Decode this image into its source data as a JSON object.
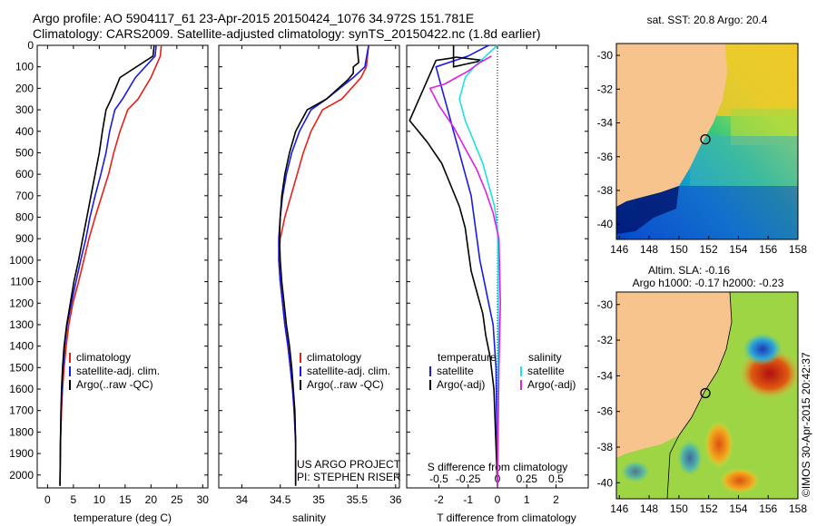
{
  "header": {
    "line1": "Argo profile: AO 5904117_61 23-Apr-2015 20150424_1076 34.972S 151.781E",
    "line2": "Climatology: CARS2009. Satellite-adjusted climatology: synTS_20150422.nc (1.8d earlier)"
  },
  "credits": {
    "project": "US ARGO PROJECT",
    "pi": "PI: STEPHEN RISER",
    "stamp": "©IMOS 30-Apr-2015 20:42:37"
  },
  "colors": {
    "climatology": "#e8201a",
    "satellite": "#1a1ae8",
    "argo": "#000000",
    "cyan": "#20e0e0",
    "magenta": "#e020e0",
    "land": "#f7c48e"
  },
  "chart_data": [
    {
      "type": "line",
      "id": "temperature",
      "xlabel": "temperature (deg C)",
      "ylabel": "",
      "xlim": [
        -2,
        31
      ],
      "ylim": [
        2060,
        0
      ],
      "xticks": [
        0,
        5,
        10,
        15,
        20,
        25,
        30
      ],
      "yticks": [
        0,
        100,
        200,
        300,
        400,
        500,
        600,
        700,
        800,
        900,
        1000,
        1100,
        1200,
        1300,
        1400,
        1500,
        1600,
        1700,
        1800,
        1900,
        2000
      ],
      "legend": [
        "climatology",
        "satellite-adj. clim.",
        "Argo(..raw -QC)"
      ],
      "series": [
        {
          "name": "climatology",
          "color": "#e8201a",
          "x": [
            22.0,
            21.8,
            20.0,
            17.5,
            15.5,
            14.0,
            12.8,
            11.8,
            10.5,
            9.2,
            8.0,
            7.0,
            6.0,
            4.9,
            4.1,
            3.6,
            3.2,
            2.9,
            2.7,
            2.5,
            2.4
          ],
          "y": [
            0,
            50,
            150,
            250,
            300,
            400,
            500,
            600,
            700,
            800,
            900,
            1000,
            1100,
            1200,
            1300,
            1400,
            1500,
            1600,
            1700,
            1850,
            2050
          ]
        },
        {
          "name": "satellite-adj. clim.",
          "color": "#1a1ae8",
          "x": [
            21.0,
            20.8,
            17.0,
            14.5,
            13.0,
            12.0,
            11.3,
            10.3,
            9.2,
            8.2,
            7.4,
            6.4,
            5.5,
            4.6,
            3.8,
            3.3,
            3.0,
            2.8,
            2.6,
            2.5,
            2.4
          ],
          "y": [
            0,
            50,
            150,
            250,
            300,
            400,
            500,
            600,
            700,
            800,
            900,
            1000,
            1100,
            1200,
            1300,
            1400,
            1500,
            1600,
            1700,
            1850,
            2050
          ]
        },
        {
          "name": "Argo(..raw -QC)",
          "color": "#000000",
          "x": [
            20.6,
            20.4,
            14.0,
            12.3,
            11.3,
            10.6,
            10.0,
            9.2,
            8.4,
            7.6,
            6.8,
            6.0,
            5.1,
            4.4,
            3.7,
            3.2,
            2.9,
            2.7,
            2.6,
            2.5,
            2.4
          ],
          "y": [
            0,
            50,
            150,
            250,
            300,
            400,
            500,
            600,
            700,
            800,
            900,
            1000,
            1100,
            1200,
            1300,
            1400,
            1500,
            1600,
            1700,
            1850,
            2050
          ]
        }
      ]
    },
    {
      "type": "line",
      "id": "salinity",
      "xlabel": "salinity",
      "ylabel": "",
      "xlim": [
        33.7,
        36.05
      ],
      "ylim": [
        2060,
        0
      ],
      "xticks": [
        34,
        34.5,
        35,
        35.5,
        36
      ],
      "legend": [
        "climatology",
        "satellite-adj. clim.",
        "Argo(..raw -QC)"
      ],
      "series": [
        {
          "name": "climatology",
          "color": "#e8201a",
          "x": [
            35.65,
            35.62,
            35.55,
            35.3,
            35.05,
            34.9,
            34.8,
            34.72,
            34.64,
            34.56,
            34.5,
            34.48,
            34.5,
            34.53,
            34.56,
            34.6,
            34.63,
            34.66,
            34.68,
            34.7,
            34.7
          ],
          "y": [
            0,
            100,
            150,
            250,
            300,
            400,
            500,
            600,
            700,
            800,
            900,
            1000,
            1100,
            1200,
            1300,
            1400,
            1500,
            1600,
            1700,
            1850,
            2050
          ]
        },
        {
          "name": "satellite-adj. clim.",
          "color": "#1a1ae8",
          "x": [
            35.65,
            35.6,
            35.45,
            35.1,
            34.9,
            34.75,
            34.65,
            34.58,
            34.53,
            34.5,
            34.48,
            34.48,
            34.5,
            34.53,
            34.56,
            34.6,
            34.63,
            34.66,
            34.68,
            34.7,
            34.7
          ],
          "y": [
            0,
            100,
            150,
            250,
            300,
            400,
            500,
            600,
            700,
            800,
            900,
            1000,
            1100,
            1200,
            1300,
            1400,
            1500,
            1600,
            1700,
            1850,
            2050
          ]
        },
        {
          "name": "Argo(..raw -QC)",
          "color": "#000000",
          "x": [
            35.5,
            35.52,
            35.45,
            35.45,
            35.38,
            35.1,
            34.85,
            34.7,
            34.62,
            34.56,
            34.52,
            34.5,
            34.49,
            34.5,
            34.52,
            34.55,
            34.58,
            34.62,
            34.65,
            34.67,
            34.69,
            34.7,
            34.7
          ],
          "y": [
            0,
            80,
            100,
            130,
            160,
            250,
            300,
            400,
            500,
            600,
            700,
            800,
            900,
            1000,
            1100,
            1200,
            1300,
            1400,
            1500,
            1600,
            1700,
            1850,
            2050
          ]
        }
      ]
    },
    {
      "type": "line",
      "id": "difference",
      "xlabel": "T difference from climatology",
      "x2label": "S difference from climatology",
      "xlim": [
        -3.1,
        3.1
      ],
      "ylim": [
        2060,
        0
      ],
      "xticks": [
        -2,
        -1,
        0,
        1,
        2
      ],
      "x2ticks": [
        "-0.5",
        "-0.25",
        "0",
        "0.25",
        "0.5"
      ],
      "legend_headers": [
        "temperature",
        "salinity"
      ],
      "legend": [
        "satellite",
        "Argo(-adj)",
        "satellite",
        "Argo(-adj)"
      ],
      "series": [
        {
          "name": "satellite",
          "group": "temperature",
          "color": "#1a1ae8",
          "x": [
            -0.3,
            -1.0,
            -2.1,
            -1.9,
            -1.7,
            -1.5,
            -1.3,
            -1.1,
            -0.9,
            -0.8,
            -0.7,
            -0.6,
            -0.45,
            -0.3,
            -0.15,
            -0.05,
            0
          ],
          "y": [
            0,
            50,
            100,
            200,
            300,
            400,
            500,
            600,
            700,
            800,
            900,
            1000,
            1100,
            1200,
            1300,
            1500,
            2050
          ]
        },
        {
          "name": "Argo(-adj)",
          "group": "temperature",
          "color": "#000000",
          "x": [
            -1.5,
            -1.5,
            -0.5,
            -1.4,
            -1.6,
            -2.1,
            -3.0,
            -2.4,
            -1.9,
            -1.6,
            -1.3,
            -1.1,
            -1.0,
            -0.9,
            -0.7,
            -0.5,
            -0.4,
            -0.25,
            -0.12,
            0
          ],
          "y": [
            0,
            100,
            70,
            55,
            60,
            70,
            350,
            450,
            550,
            650,
            750,
            850,
            950,
            1050,
            1150,
            1250,
            1350,
            1450,
            1600,
            2050
          ]
        },
        {
          "name": "satellite",
          "group": "salinity",
          "color": "#20e0e0",
          "x": [
            0,
            -0.4,
            -0.8,
            -1.1,
            -1.3,
            -1.1,
            -0.8,
            -0.5,
            -0.3,
            -0.1,
            0,
            0.02,
            0.03,
            0.03,
            0.02,
            0
          ],
          "y": [
            0,
            50,
            100,
            150,
            250,
            350,
            450,
            550,
            650,
            750,
            850,
            1000,
            1200,
            1400,
            1600,
            2050
          ]
        },
        {
          "name": "Argo(-adj)",
          "group": "salinity",
          "color": "#e020e0",
          "x": [
            -0.2,
            -0.6,
            -1.0,
            -1.4,
            -1.8,
            -2.3,
            -2.0,
            -1.5,
            -1.1,
            -0.7,
            -0.4,
            -0.15,
            0.05,
            0.1,
            0.05,
            0
          ],
          "y": [
            50,
            80,
            120,
            150,
            180,
            200,
            280,
            380,
            480,
            580,
            680,
            780,
            900,
            1200,
            1500,
            2050
          ]
        }
      ]
    },
    {
      "type": "heatmap",
      "id": "sst-map",
      "title": "sat. SST: 20.8  Argo: 20.4",
      "xticks": [
        146,
        148,
        150,
        152,
        154,
        156,
        158
      ],
      "yticks": [
        -30,
        -32,
        -34,
        -36,
        -38,
        -40
      ],
      "xlim": [
        145.8,
        158
      ],
      "ylim": [
        -40.9,
        -29.3
      ],
      "argo_position": [
        151.781,
        -34.972
      ]
    },
    {
      "type": "heatmap",
      "id": "sla-map",
      "title": "Altim. SLA: -0.16",
      "subtitle": "Argo h1000: -0.17  h2000: -0.23",
      "xticks": [
        146,
        148,
        150,
        152,
        154,
        156,
        158
      ],
      "yticks": [
        -30,
        -32,
        -34,
        -36,
        -38,
        -40
      ],
      "xlim": [
        145.8,
        158
      ],
      "ylim": [
        -40.9,
        -29.3
      ],
      "argo_position": [
        151.781,
        -34.972
      ]
    }
  ]
}
